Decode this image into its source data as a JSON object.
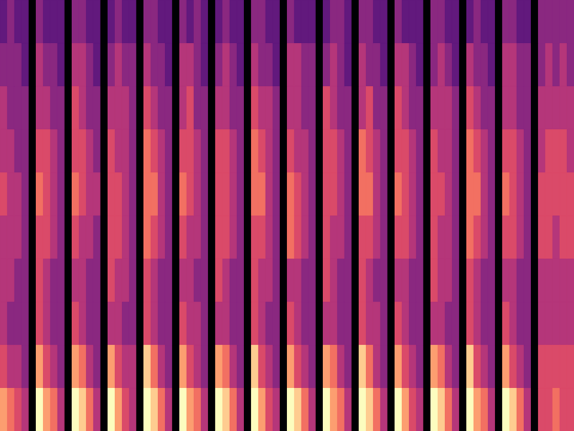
{
  "chart_data": {
    "type": "heatmap",
    "color": "magma",
    "grid": false,
    "tick_labels": false,
    "legend": "none",
    "cells": [
      [
        3,
        4,
        3,
        3,
        0,
        4,
        3,
        3,
        3,
        0,
        4,
        4,
        3,
        3,
        0,
        3,
        4,
        3,
        3,
        0,
        4,
        4,
        3,
        3,
        0,
        4,
        3,
        4,
        3,
        0,
        3,
        4,
        3,
        3,
        0,
        4,
        4,
        3,
        3,
        0,
        4,
        3,
        3,
        3,
        0,
        3,
        4,
        4,
        3,
        0,
        4,
        4,
        3,
        3,
        0,
        4,
        3,
        3,
        3,
        0,
        4,
        4,
        3,
        3,
        0,
        3,
        4,
        3,
        3,
        0,
        4,
        4,
        3,
        3,
        0,
        4,
        4,
        4,
        4,
        4
      ],
      [
        4,
        4,
        4,
        3,
        0,
        5,
        4,
        4,
        3,
        0,
        5,
        5,
        4,
        3,
        0,
        4,
        5,
        4,
        4,
        0,
        5,
        4,
        4,
        3,
        0,
        5,
        5,
        4,
        3,
        0,
        4,
        5,
        4,
        3,
        0,
        5,
        4,
        4,
        3,
        0,
        5,
        5,
        4,
        4,
        0,
        4,
        5,
        4,
        3,
        0,
        5,
        4,
        4,
        3,
        0,
        5,
        5,
        4,
        3,
        0,
        4,
        5,
        4,
        3,
        0,
        5,
        4,
        4,
        3,
        0,
        5,
        5,
        4,
        4,
        0,
        4,
        5,
        4,
        5,
        4
      ],
      [
        5,
        4,
        4,
        4,
        0,
        5,
        5,
        4,
        4,
        0,
        6,
        5,
        4,
        4,
        0,
        5,
        5,
        5,
        4,
        0,
        6,
        5,
        4,
        4,
        0,
        5,
        6,
        4,
        4,
        0,
        5,
        5,
        4,
        4,
        0,
        6,
        5,
        5,
        4,
        0,
        5,
        5,
        4,
        4,
        0,
        6,
        5,
        4,
        4,
        0,
        5,
        6,
        4,
        4,
        0,
        6,
        5,
        4,
        4,
        0,
        5,
        5,
        5,
        4,
        0,
        6,
        5,
        4,
        4,
        0,
        5,
        5,
        4,
        4,
        0,
        5,
        5,
        5,
        5,
        5
      ],
      [
        5,
        5,
        4,
        4,
        0,
        6,
        6,
        5,
        4,
        0,
        6,
        6,
        5,
        4,
        0,
        6,
        5,
        5,
        4,
        0,
        7,
        6,
        5,
        4,
        0,
        6,
        6,
        5,
        4,
        0,
        6,
        6,
        5,
        4,
        0,
        7,
        6,
        5,
        4,
        0,
        6,
        5,
        5,
        4,
        0,
        6,
        6,
        5,
        4,
        0,
        7,
        6,
        5,
        4,
        0,
        6,
        6,
        5,
        4,
        0,
        6,
        5,
        5,
        4,
        0,
        7,
        6,
        5,
        4,
        0,
        6,
        6,
        5,
        4,
        0,
        5,
        6,
        6,
        6,
        5
      ],
      [
        6,
        5,
        5,
        4,
        0,
        7,
        6,
        5,
        4,
        0,
        7,
        6,
        5,
        5,
        0,
        6,
        6,
        5,
        4,
        0,
        7,
        7,
        5,
        4,
        0,
        7,
        6,
        5,
        4,
        0,
        6,
        6,
        5,
        4,
        0,
        7,
        7,
        5,
        4,
        0,
        7,
        6,
        5,
        4,
        0,
        6,
        6,
        5,
        4,
        0,
        7,
        7,
        5,
        4,
        0,
        7,
        6,
        5,
        4,
        0,
        6,
        6,
        5,
        4,
        0,
        7,
        7,
        5,
        4,
        0,
        7,
        6,
        5,
        4,
        0,
        6,
        6,
        6,
        6,
        6
      ],
      [
        5,
        5,
        5,
        4,
        0,
        6,
        6,
        5,
        4,
        0,
        6,
        5,
        5,
        4,
        0,
        6,
        6,
        5,
        4,
        0,
        7,
        6,
        5,
        4,
        0,
        6,
        5,
        5,
        4,
        0,
        6,
        6,
        5,
        4,
        0,
        6,
        6,
        5,
        4,
        0,
        7,
        6,
        5,
        4,
        0,
        6,
        5,
        5,
        4,
        0,
        6,
        6,
        5,
        4,
        0,
        6,
        6,
        5,
        4,
        0,
        6,
        5,
        5,
        4,
        0,
        7,
        6,
        5,
        4,
        0,
        6,
        6,
        5,
        4,
        0,
        6,
        6,
        5,
        6,
        6
      ],
      [
        5,
        5,
        4,
        4,
        0,
        6,
        5,
        4,
        4,
        0,
        5,
        5,
        4,
        4,
        0,
        6,
        5,
        5,
        4,
        0,
        6,
        5,
        4,
        4,
        0,
        5,
        5,
        4,
        4,
        0,
        6,
        5,
        4,
        4,
        0,
        6,
        5,
        5,
        4,
        0,
        5,
        5,
        4,
        4,
        0,
        6,
        5,
        4,
        4,
        0,
        6,
        5,
        4,
        4,
        0,
        5,
        5,
        4,
        4,
        0,
        6,
        5,
        5,
        4,
        0,
        6,
        5,
        4,
        4,
        0,
        5,
        5,
        4,
        4,
        0,
        5,
        5,
        5,
        5,
        5
      ],
      [
        5,
        4,
        4,
        4,
        0,
        6,
        5,
        4,
        4,
        0,
        6,
        5,
        4,
        4,
        0,
        5,
        5,
        4,
        4,
        0,
        6,
        5,
        4,
        4,
        0,
        6,
        5,
        5,
        4,
        0,
        5,
        5,
        4,
        4,
        0,
        6,
        5,
        4,
        4,
        0,
        6,
        5,
        4,
        4,
        0,
        5,
        5,
        4,
        4,
        0,
        6,
        5,
        5,
        4,
        0,
        6,
        5,
        4,
        4,
        0,
        5,
        5,
        4,
        4,
        0,
        6,
        5,
        4,
        4,
        0,
        6,
        5,
        4,
        4,
        0,
        5,
        5,
        5,
        5,
        5
      ],
      [
        6,
        5,
        5,
        4,
        0,
        8,
        6,
        5,
        4,
        0,
        8,
        7,
        5,
        4,
        0,
        8,
        6,
        5,
        5,
        0,
        9,
        7,
        5,
        4,
        0,
        8,
        6,
        5,
        4,
        0,
        8,
        7,
        5,
        4,
        0,
        9,
        6,
        5,
        4,
        0,
        8,
        6,
        5,
        4,
        0,
        8,
        7,
        5,
        4,
        0,
        9,
        7,
        5,
        4,
        0,
        8,
        6,
        5,
        4,
        0,
        8,
        7,
        5,
        4,
        0,
        9,
        6,
        5,
        4,
        0,
        8,
        6,
        5,
        4,
        0,
        6,
        6,
        6,
        6,
        6
      ],
      [
        8,
        7,
        6,
        5,
        0,
        10,
        8,
        7,
        5,
        0,
        10,
        9,
        7,
        5,
        0,
        10,
        8,
        6,
        5,
        0,
        10,
        9,
        7,
        5,
        0,
        10,
        8,
        7,
        5,
        0,
        10,
        9,
        7,
        5,
        0,
        10,
        8,
        6,
        5,
        0,
        10,
        9,
        7,
        5,
        0,
        10,
        8,
        7,
        5,
        0,
        10,
        9,
        7,
        5,
        0,
        10,
        8,
        6,
        5,
        0,
        10,
        9,
        7,
        5,
        0,
        10,
        8,
        7,
        5,
        0,
        10,
        9,
        7,
        5,
        0,
        6,
        6,
        7,
        6,
        6
      ]
    ]
  }
}
